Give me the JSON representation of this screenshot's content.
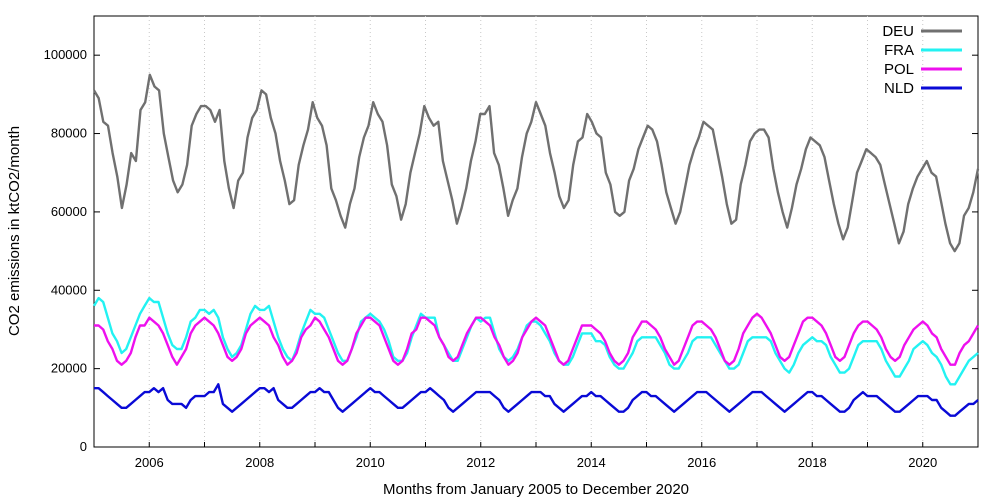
{
  "chart_data": {
    "type": "line",
    "xlabel": "Months from January 2005 to December 2020",
    "ylabel": "CO2 emissions in ktCO2/month",
    "xlim": [
      2005,
      2021
    ],
    "ylim": [
      0,
      110000
    ],
    "x_ticks": [
      2006,
      2008,
      2010,
      2012,
      2014,
      2016,
      2018,
      2020
    ],
    "y_ticks": [
      0,
      20000,
      40000,
      60000,
      80000,
      100000
    ],
    "legend_position": "top-right",
    "x_start_month": "2005-01",
    "series": [
      {
        "name": "DEU",
        "color": "#707070",
        "values": [
          91000,
          89000,
          83000,
          82000,
          75000,
          69000,
          61000,
          67000,
          75000,
          73000,
          86000,
          88000,
          95000,
          92000,
          91000,
          80000,
          74000,
          68000,
          65000,
          67000,
          72000,
          82000,
          85000,
          87000,
          87000,
          86000,
          83000,
          86000,
          73000,
          66000,
          61000,
          68000,
          70000,
          79000,
          84000,
          86000,
          91000,
          90000,
          84000,
          80000,
          73000,
          68000,
          62000,
          63000,
          72000,
          77000,
          81000,
          88000,
          84000,
          82000,
          77000,
          66000,
          63000,
          59000,
          56000,
          62000,
          66000,
          74000,
          79000,
          82000,
          88000,
          85000,
          83000,
          77000,
          67000,
          64000,
          58000,
          62000,
          70000,
          75000,
          80000,
          87000,
          84000,
          82000,
          83000,
          73000,
          68000,
          63000,
          57000,
          61000,
          66000,
          73000,
          78000,
          85000,
          85000,
          87000,
          75000,
          72000,
          66000,
          59000,
          63000,
          66000,
          74000,
          80000,
          83000,
          88000,
          85000,
          82000,
          75000,
          70000,
          64000,
          61000,
          63000,
          72000,
          78000,
          79000,
          85000,
          83000,
          80000,
          79000,
          70000,
          67000,
          60000,
          59000,
          60000,
          68000,
          71000,
          76000,
          79000,
          82000,
          81000,
          78000,
          72000,
          65000,
          61000,
          57000,
          60000,
          66000,
          72000,
          76000,
          79000,
          83000,
          82000,
          81000,
          75000,
          69000,
          62000,
          57000,
          58000,
          67000,
          72000,
          78000,
          80000,
          81000,
          81000,
          79000,
          71000,
          65000,
          60000,
          56000,
          61000,
          67000,
          71000,
          76000,
          79000,
          78000,
          77000,
          74000,
          68000,
          62000,
          57000,
          53000,
          56000,
          63000,
          70000,
          73000,
          76000,
          75000,
          74000,
          72000,
          67000,
          62000,
          57000,
          52000,
          55000,
          62000,
          66000,
          69000,
          71000,
          73000,
          70000,
          69000,
          63000,
          57000,
          52000,
          50000,
          52000,
          59000,
          61000,
          65000,
          71000
        ]
      },
      {
        "name": "FRA",
        "color": "#22f2f2",
        "values": [
          36000,
          38000,
          37000,
          33000,
          29000,
          27000,
          24000,
          25000,
          28000,
          31000,
          34000,
          36000,
          38000,
          37000,
          37000,
          33000,
          29000,
          26000,
          25000,
          25000,
          28000,
          32000,
          33000,
          35000,
          35000,
          34000,
          35000,
          33000,
          28000,
          25000,
          23000,
          24000,
          26000,
          30000,
          34000,
          36000,
          35000,
          35000,
          36000,
          32000,
          28000,
          25000,
          23000,
          22000,
          25000,
          29000,
          32000,
          35000,
          34000,
          34000,
          33000,
          30000,
          27000,
          24000,
          22000,
          22000,
          25000,
          28000,
          32000,
          33000,
          34000,
          33000,
          32000,
          30000,
          27000,
          23000,
          22000,
          22000,
          24000,
          28000,
          31000,
          34000,
          33000,
          33000,
          33000,
          28000,
          26000,
          24000,
          22000,
          22000,
          25000,
          28000,
          31000,
          33000,
          32000,
          33000,
          33000,
          29000,
          25000,
          23000,
          22000,
          23000,
          25000,
          28000,
          31000,
          32000,
          32000,
          31000,
          29000,
          27000,
          24000,
          22000,
          21000,
          21000,
          23000,
          26000,
          29000,
          29000,
          29000,
          27000,
          27000,
          26000,
          23000,
          21000,
          20000,
          20000,
          22000,
          24000,
          27000,
          28000,
          28000,
          28000,
          28000,
          26000,
          24000,
          21000,
          20000,
          20000,
          22000,
          24000,
          27000,
          28000,
          28000,
          28000,
          28000,
          26000,
          24000,
          22000,
          20000,
          20000,
          21000,
          24000,
          27000,
          28000,
          28000,
          28000,
          28000,
          27000,
          24000,
          22000,
          20000,
          19000,
          21000,
          24000,
          26000,
          27000,
          28000,
          27000,
          27000,
          26000,
          23000,
          21000,
          19000,
          19000,
          20000,
          23000,
          26000,
          27000,
          27000,
          27000,
          27000,
          25000,
          22000,
          20000,
          18000,
          18000,
          20000,
          22000,
          25000,
          26000,
          27000,
          26000,
          24000,
          23000,
          21000,
          18000,
          16000,
          16000,
          18000,
          20000,
          22000,
          23000,
          24000
        ]
      },
      {
        "name": "POL",
        "color": "#ee10ee",
        "values": [
          31000,
          31000,
          30000,
          27000,
          25000,
          22000,
          21000,
          22000,
          24000,
          28000,
          31000,
          31000,
          33000,
          32000,
          31000,
          29000,
          26000,
          23000,
          21000,
          23000,
          25000,
          29000,
          31000,
          32000,
          33000,
          32000,
          31000,
          29000,
          26000,
          23000,
          22000,
          23000,
          25000,
          29000,
          31000,
          32000,
          33000,
          32000,
          31000,
          28000,
          26000,
          23000,
          21000,
          22000,
          24000,
          28000,
          30000,
          31000,
          33000,
          32000,
          30000,
          28000,
          25000,
          22000,
          21000,
          22000,
          25000,
          29000,
          31000,
          33000,
          33000,
          32000,
          31000,
          28000,
          25000,
          22000,
          21000,
          22000,
          25000,
          29000,
          30000,
          33000,
          33000,
          32000,
          31000,
          28000,
          26000,
          23000,
          22000,
          23000,
          26000,
          29000,
          31000,
          33000,
          33000,
          32000,
          31000,
          28000,
          26000,
          23000,
          21000,
          22000,
          24000,
          28000,
          30000,
          32000,
          33000,
          32000,
          31000,
          28000,
          25000,
          22000,
          21000,
          22000,
          25000,
          28000,
          31000,
          31000,
          31000,
          30000,
          29000,
          27000,
          24000,
          22000,
          21000,
          22000,
          24000,
          28000,
          30000,
          32000,
          32000,
          31000,
          30000,
          28000,
          25000,
          23000,
          21000,
          22000,
          25000,
          28000,
          31000,
          32000,
          32000,
          31000,
          30000,
          28000,
          25000,
          22000,
          21000,
          22000,
          25000,
          29000,
          31000,
          33000,
          34000,
          33000,
          31000,
          29000,
          26000,
          23000,
          22000,
          23000,
          26000,
          29000,
          32000,
          33000,
          33000,
          32000,
          31000,
          29000,
          26000,
          23000,
          22000,
          23000,
          26000,
          29000,
          31000,
          32000,
          32000,
          31000,
          30000,
          28000,
          25000,
          23000,
          22000,
          23000,
          26000,
          28000,
          30000,
          31000,
          32000,
          31000,
          29000,
          28000,
          25000,
          23000,
          21000,
          21000,
          24000,
          26000,
          27000,
          29000,
          31000
        ]
      },
      {
        "name": "NLD",
        "color": "#0a0ad6",
        "values": [
          15000,
          15000,
          14000,
          13000,
          12000,
          11000,
          10000,
          10000,
          11000,
          12000,
          13000,
          14000,
          14000,
          15000,
          14000,
          15000,
          12000,
          11000,
          11000,
          11000,
          10000,
          12000,
          13000,
          13000,
          13000,
          14000,
          14000,
          16000,
          11000,
          10000,
          9000,
          10000,
          11000,
          12000,
          13000,
          14000,
          15000,
          15000,
          14000,
          15000,
          12000,
          11000,
          10000,
          10000,
          11000,
          12000,
          13000,
          14000,
          14000,
          15000,
          14000,
          14000,
          12000,
          10000,
          9000,
          10000,
          11000,
          12000,
          13000,
          14000,
          15000,
          14000,
          14000,
          13000,
          12000,
          11000,
          10000,
          10000,
          11000,
          12000,
          13000,
          14000,
          14000,
          15000,
          14000,
          13000,
          12000,
          10000,
          9000,
          10000,
          11000,
          12000,
          13000,
          14000,
          14000,
          14000,
          14000,
          13000,
          12000,
          10000,
          9000,
          10000,
          11000,
          12000,
          13000,
          14000,
          14000,
          14000,
          13000,
          13000,
          11000,
          10000,
          9000,
          10000,
          11000,
          12000,
          13000,
          13000,
          14000,
          13000,
          13000,
          12000,
          11000,
          10000,
          9000,
          9000,
          10000,
          12000,
          13000,
          14000,
          14000,
          13000,
          13000,
          12000,
          11000,
          10000,
          9000,
          10000,
          11000,
          12000,
          13000,
          14000,
          14000,
          14000,
          13000,
          12000,
          11000,
          10000,
          9000,
          10000,
          11000,
          12000,
          13000,
          14000,
          14000,
          14000,
          13000,
          12000,
          11000,
          10000,
          9000,
          10000,
          11000,
          12000,
          13000,
          14000,
          14000,
          13000,
          13000,
          12000,
          11000,
          10000,
          9000,
          9000,
          10000,
          12000,
          13000,
          14000,
          13000,
          13000,
          13000,
          12000,
          11000,
          10000,
          9000,
          9000,
          10000,
          11000,
          12000,
          13000,
          13000,
          13000,
          12000,
          12000,
          10000,
          9000,
          8000,
          8000,
          9000,
          10000,
          11000,
          11000,
          12000
        ]
      }
    ]
  }
}
